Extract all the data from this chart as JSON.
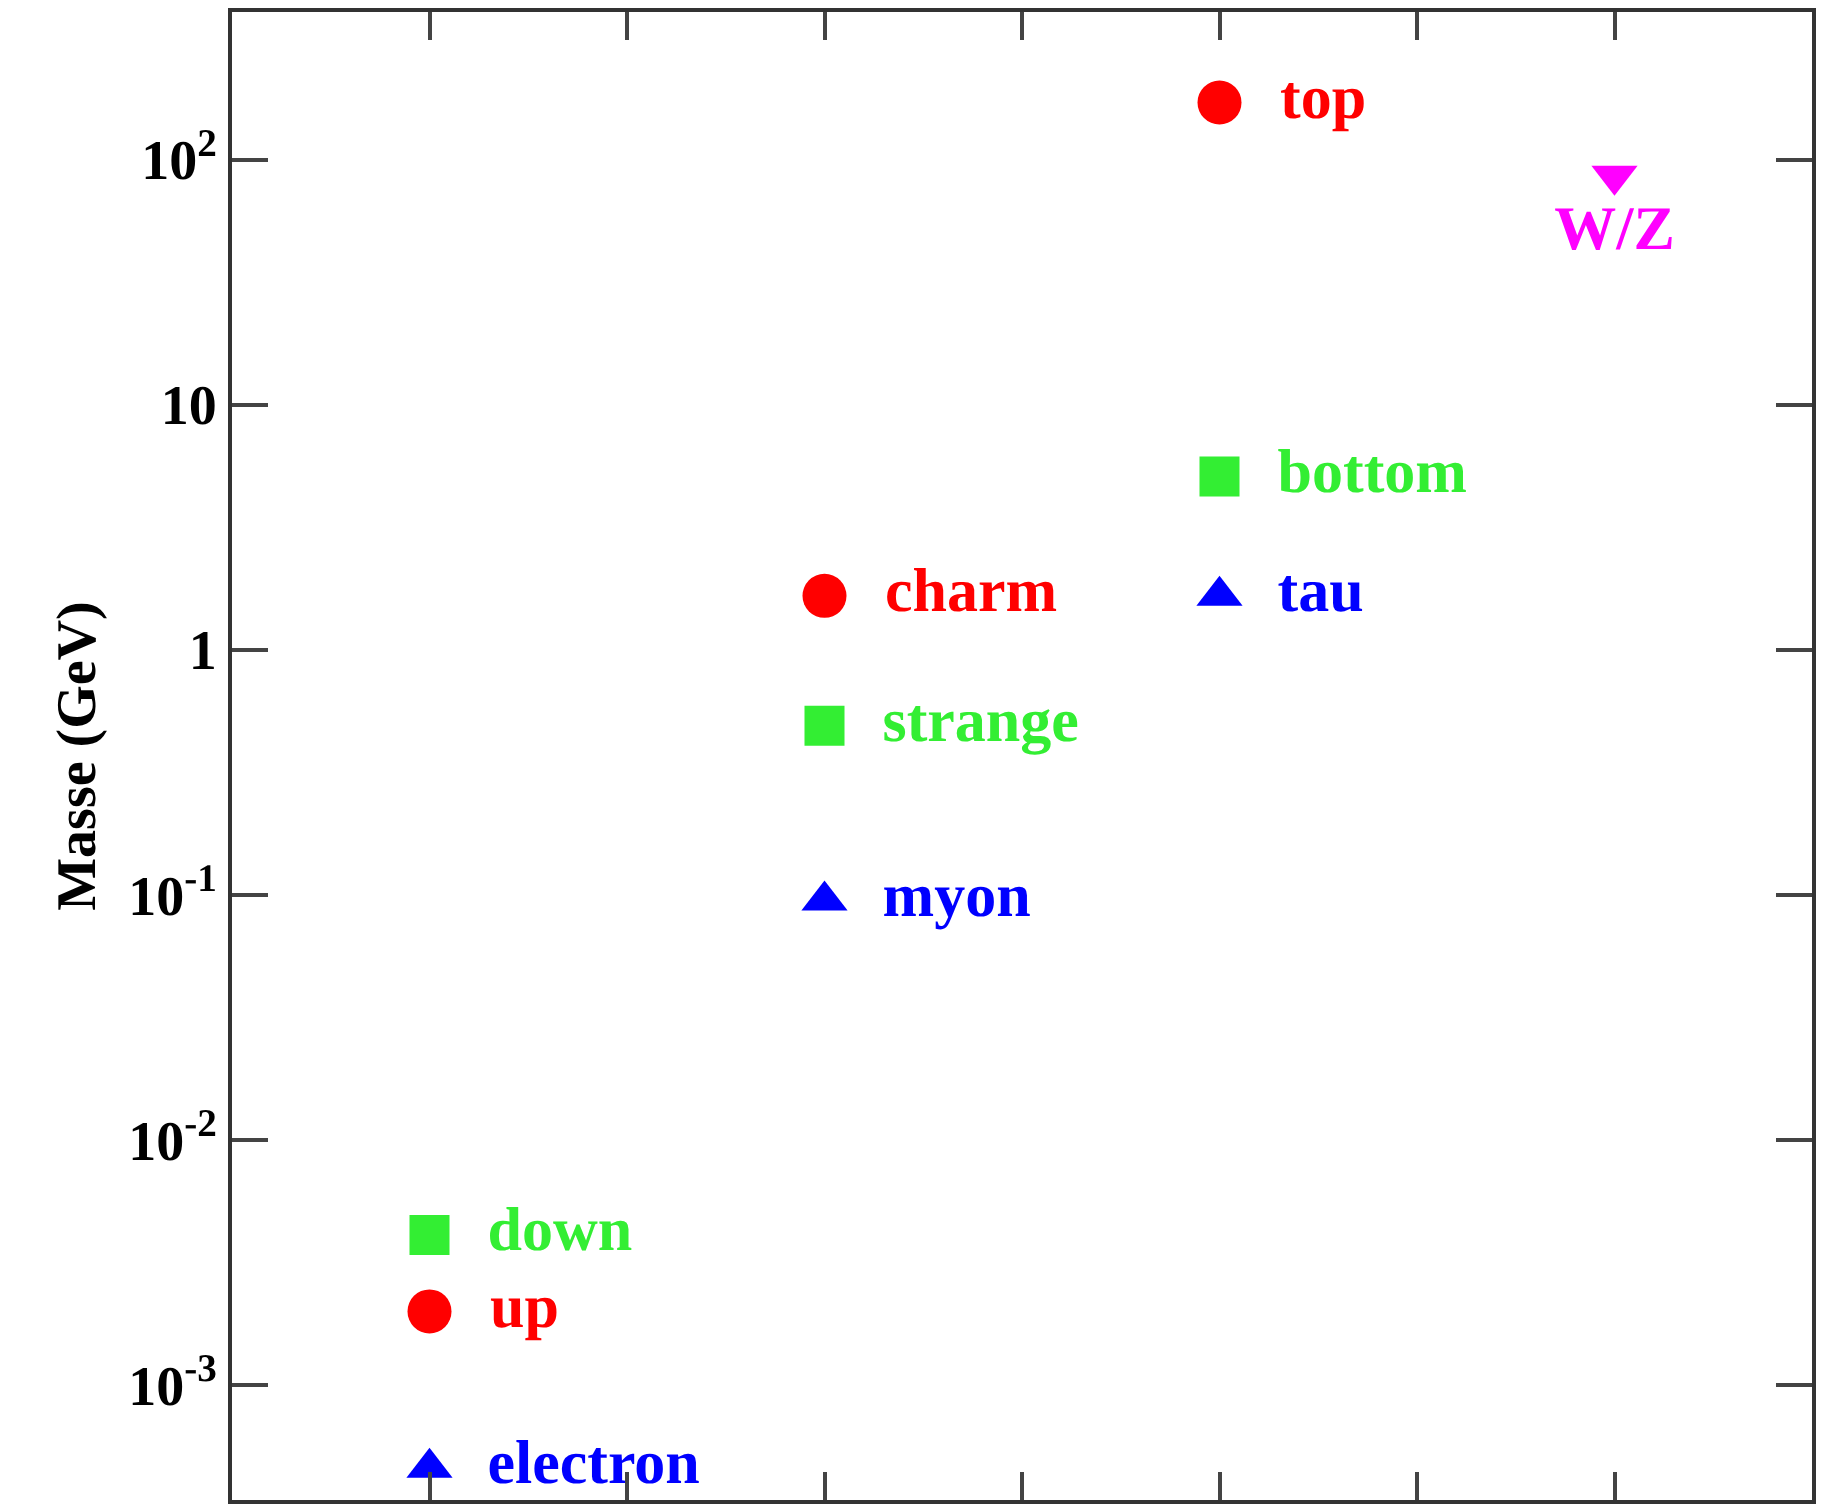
{
  "chart_data": {
    "type": "scatter",
    "ylabel": "Masse (GeV)",
    "log": "y",
    "grid": false,
    "legend": false,
    "tick_labels": "y",
    "categories": [
      null,
      null,
      null,
      null,
      null,
      null,
      null
    ],
    "ylim": [
      0.00034,
      400
    ],
    "yticks": [
      {
        "value": 0.001,
        "label": "10$^{-3}$"
      },
      {
        "value": 0.01,
        "label": "10$^{-2}$"
      },
      {
        "value": 0.1,
        "label": "10$^{-1}$"
      },
      {
        "value": 1,
        "label": "1"
      },
      {
        "value": 10,
        "label": "10"
      },
      {
        "value": 100,
        "label": "10$^{2}$"
      }
    ],
    "series": [
      {
        "name": "down",
        "color": "#33ee33",
        "marker": "square",
        "values": [
          0.0041,
          null,
          null,
          null,
          null,
          null,
          null
        ]
      },
      {
        "name": "up",
        "color": "#ff0000",
        "marker": "circle",
        "values": [
          0.002,
          null,
          null,
          null,
          null,
          null,
          null
        ]
      },
      {
        "name": "electron",
        "color": "#0000ff",
        "marker": "triangle",
        "values": [
          0.00046,
          null,
          null,
          null,
          null,
          null,
          null
        ]
      },
      {
        "name": "charm",
        "color": "#ff0000",
        "marker": "circle",
        "values": [
          null,
          null,
          1.66,
          null,
          null,
          null,
          null
        ]
      },
      {
        "name": "strange",
        "color": "#33ee33",
        "marker": "square",
        "values": [
          null,
          null,
          0.49,
          null,
          null,
          null,
          null
        ]
      },
      {
        "name": "myon",
        "color": "#0000ff",
        "marker": "triangle",
        "values": [
          null,
          null,
          0.095,
          null,
          null,
          null,
          null
        ]
      },
      {
        "name": "top",
        "color": "#ff0000",
        "marker": "circle",
        "values": [
          null,
          null,
          null,
          null,
          171,
          null,
          null
        ]
      },
      {
        "name": "bottom",
        "color": "#33ee33",
        "marker": "square",
        "values": [
          null,
          null,
          null,
          null,
          5.1,
          null,
          null
        ]
      },
      {
        "name": "tau",
        "color": "#0000ff",
        "marker": "triangle",
        "values": [
          null,
          null,
          null,
          null,
          1.66,
          null,
          null
        ]
      },
      {
        "name": "W/Z",
        "color": "#ff00ff",
        "marker": "triangle-down",
        "values": [
          null,
          null,
          null,
          null,
          null,
          null,
          86
        ]
      }
    ]
  }
}
